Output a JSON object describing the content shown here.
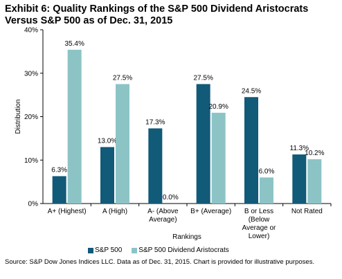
{
  "title": "Exhibit 6: Quality Rankings of the S&P 500 Dividend Aristocrats Versus S&P 500 as of Dec. 31, 2015",
  "source": "Source: S&P Dow Jones Indices LLC.  Data as of Dec. 31, 2015.  Chart is provided for illustrative purposes.",
  "colors": {
    "sp500": "#115a78",
    "aristocrats": "#8cc4c6"
  },
  "chart_data": {
    "type": "bar",
    "categories": [
      [
        "A+ (Highest)"
      ],
      [
        "A (High)"
      ],
      [
        "A- (Above",
        "Average)"
      ],
      [
        "B+ (Average)"
      ],
      [
        "B or Less",
        "(Below",
        "Average or",
        "Lower)"
      ],
      [
        "Not Rated"
      ]
    ],
    "series": [
      {
        "name": "S&P 500",
        "values": [
          6.3,
          13.0,
          17.3,
          27.5,
          24.5,
          11.3
        ],
        "labels": [
          "6.3%",
          "13.0%",
          "17.3%",
          "27.5%",
          "24.5%",
          "11.3%"
        ]
      },
      {
        "name": "S&P 500 Dividend Aristocrats",
        "values": [
          35.4,
          27.5,
          0.0,
          20.9,
          6.0,
          10.2
        ],
        "labels": [
          "35.4%",
          "27.5%",
          "0.0%",
          "20.9%",
          "6.0%",
          "10.2%"
        ]
      }
    ],
    "xlabel": "Rankings",
    "ylabel": "Distribution",
    "ylim": [
      0,
      40
    ],
    "yticks": [
      0,
      10,
      20,
      30,
      40
    ],
    "ytick_labels": [
      "0%",
      "10%",
      "20%",
      "30%",
      "40%"
    ],
    "grid": false,
    "legend_position": "bottom"
  }
}
